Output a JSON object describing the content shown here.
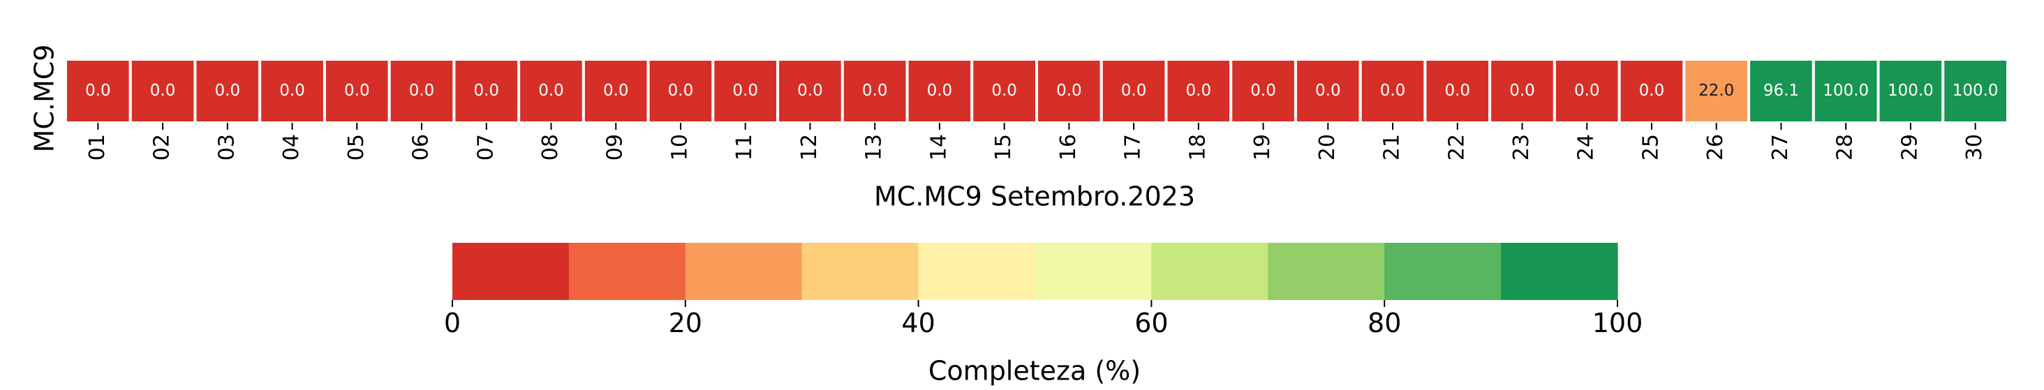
{
  "chart_data": {
    "type": "heatmap",
    "ylabel": "MC.MC9",
    "xlabel": "MC.MC9 Setembro.2023",
    "rows": [
      "MC.MC9"
    ],
    "columns": [
      "01",
      "02",
      "03",
      "04",
      "05",
      "06",
      "07",
      "08",
      "09",
      "10",
      "11",
      "12",
      "13",
      "14",
      "15",
      "16",
      "17",
      "18",
      "19",
      "20",
      "21",
      "22",
      "23",
      "24",
      "25",
      "26",
      "27",
      "28",
      "29",
      "30"
    ],
    "values": [
      [
        0.0,
        0.0,
        0.0,
        0.0,
        0.0,
        0.0,
        0.0,
        0.0,
        0.0,
        0.0,
        0.0,
        0.0,
        0.0,
        0.0,
        0.0,
        0.0,
        0.0,
        0.0,
        0.0,
        0.0,
        0.0,
        0.0,
        0.0,
        0.0,
        0.0,
        22.0,
        96.1,
        100.0,
        100.0,
        100.0
      ]
    ],
    "cell_labels": [
      [
        "0.0",
        "0.0",
        "0.0",
        "0.0",
        "0.0",
        "0.0",
        "0.0",
        "0.0",
        "0.0",
        "0.0",
        "0.0",
        "0.0",
        "0.0",
        "0.0",
        "0.0",
        "0.0",
        "0.0",
        "0.0",
        "0.0",
        "0.0",
        "0.0",
        "0.0",
        "0.0",
        "0.0",
        "0.0",
        "22.0",
        "96.1",
        "100.0",
        "100.0",
        "100.0"
      ]
    ],
    "colorbar": {
      "label": "Completeza (%)",
      "range": [
        0,
        100
      ],
      "ticks": [
        0,
        20,
        40,
        60,
        80,
        100
      ],
      "tick_labels": [
        "0",
        "20",
        "40",
        "60",
        "80",
        "100"
      ],
      "bins": [
        {
          "from": 0,
          "to": 10,
          "color": "#d62f27"
        },
        {
          "from": 10,
          "to": 20,
          "color": "#ef633f"
        },
        {
          "from": 20,
          "to": 30,
          "color": "#f99c5a"
        },
        {
          "from": 30,
          "to": 40,
          "color": "#fece7b"
        },
        {
          "from": 40,
          "to": 50,
          "color": "#fff1a8"
        },
        {
          "from": 50,
          "to": 60,
          "color": "#eff8a6"
        },
        {
          "from": 60,
          "to": 70,
          "color": "#c7e77f"
        },
        {
          "from": 70,
          "to": 80,
          "color": "#93ce68"
        },
        {
          "from": 80,
          "to": 90,
          "color": "#57b65f"
        },
        {
          "from": 90,
          "to": 100,
          "color": "#179552"
        }
      ]
    },
    "text_colors": {
      "light": "#ffffff",
      "dark": "#1a1a1a"
    }
  }
}
